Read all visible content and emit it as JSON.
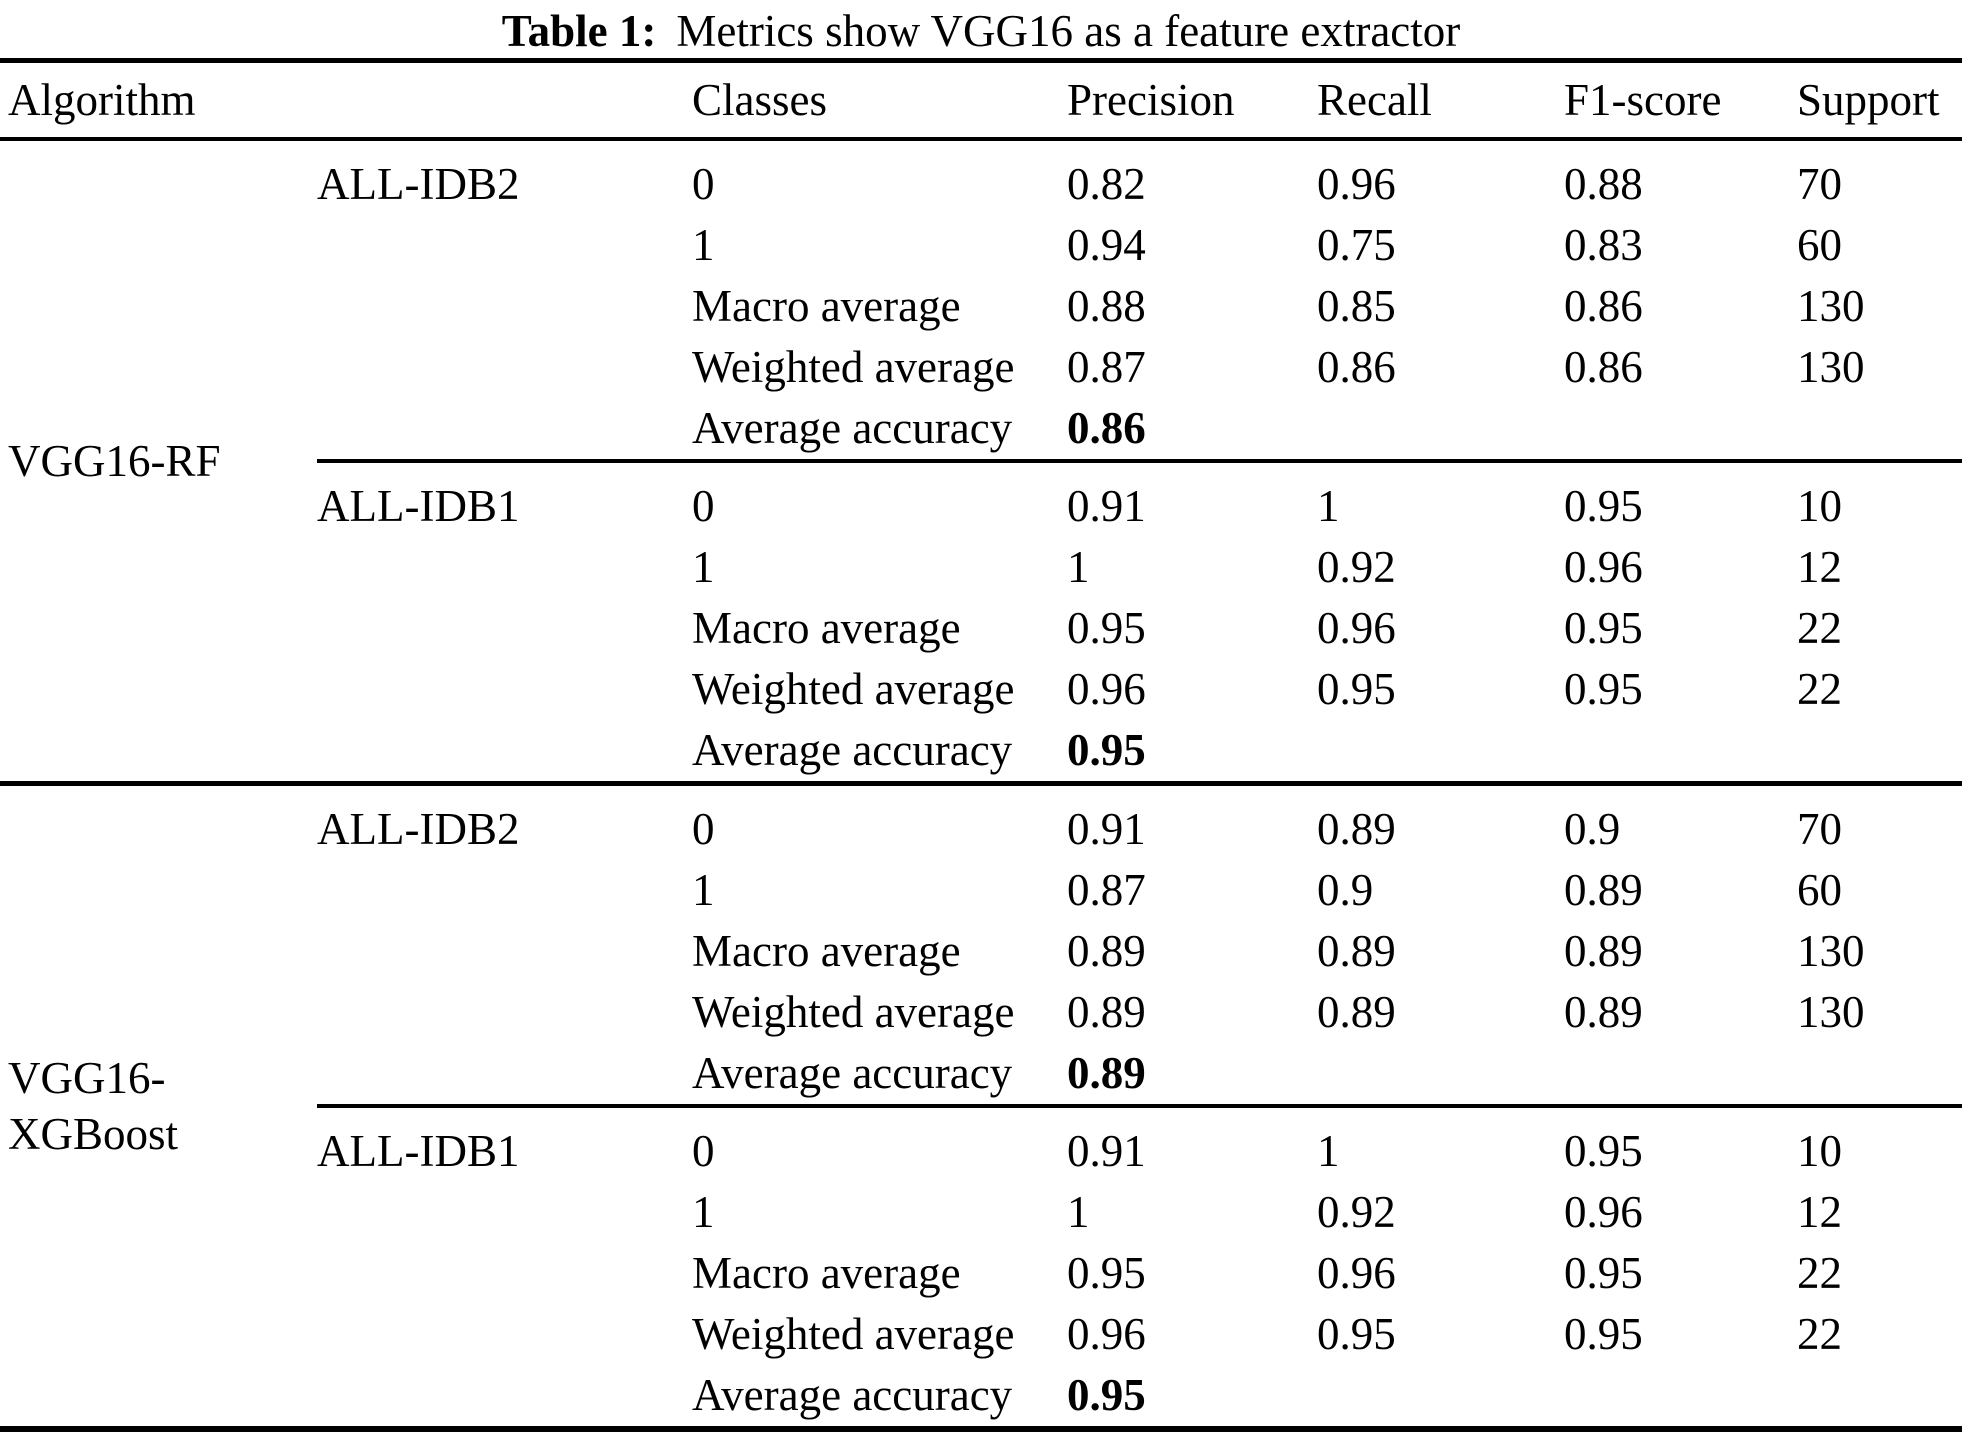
{
  "title": {
    "label": "Table 1:",
    "text": "Metrics show VGG16 as a feature extractor"
  },
  "columns": {
    "algorithm": "Algorithm",
    "dataset": "",
    "classes": "Classes",
    "precision": "Precision",
    "recall": "Recall",
    "f1": "F1-score",
    "support": "Support"
  },
  "groups": [
    {
      "algorithm_lines": [
        "VGG16-RF"
      ],
      "sections": [
        {
          "dataset": "ALL-IDB2",
          "rows": [
            [
              "0",
              "0.82",
              "0.96",
              "0.88",
              "70"
            ],
            [
              "1",
              "0.94",
              "0.75",
              "0.83",
              "60"
            ],
            [
              "Macro average",
              "0.88",
              "0.85",
              "0.86",
              "130"
            ],
            [
              "Weighted average",
              "0.87",
              "0.86",
              "0.86",
              "130"
            ],
            [
              "Average accuracy",
              "0.86",
              "",
              "",
              ""
            ]
          ]
        },
        {
          "dataset": "ALL-IDB1",
          "rows": [
            [
              "0",
              "0.91",
              "1",
              "0.95",
              "10"
            ],
            [
              "1",
              "1",
              "0.92",
              "0.96",
              "12"
            ],
            [
              "Macro average",
              "0.95",
              "0.96",
              "0.95",
              "22"
            ],
            [
              "Weighted average",
              "0.96",
              "0.95",
              "0.95",
              "22"
            ],
            [
              "Average accuracy",
              "0.95",
              "",
              "",
              ""
            ]
          ]
        }
      ]
    },
    {
      "algorithm_lines": [
        "VGG16-",
        "XGBoost"
      ],
      "sections": [
        {
          "dataset": "ALL-IDB2",
          "rows": [
            [
              "0",
              "0.91",
              "0.89",
              "0.9",
              "70"
            ],
            [
              "1",
              "0.87",
              "0.9",
              "0.89",
              "60"
            ],
            [
              "Macro average",
              "0.89",
              "0.89",
              "0.89",
              "130"
            ],
            [
              "Weighted average",
              "0.89",
              "0.89",
              "0.89",
              "130"
            ],
            [
              "Average accuracy",
              "0.89",
              "",
              "",
              ""
            ]
          ]
        },
        {
          "dataset": "ALL-IDB1",
          "rows": [
            [
              "0",
              "0.91",
              "1",
              "0.95",
              "10"
            ],
            [
              "1",
              "1",
              "0.92",
              "0.96",
              "12"
            ],
            [
              "Macro average",
              "0.95",
              "0.96",
              "0.95",
              "22"
            ],
            [
              "Weighted average",
              "0.96",
              "0.95",
              "0.95",
              "22"
            ],
            [
              "Average accuracy",
              "0.95",
              "",
              "",
              ""
            ]
          ]
        }
      ]
    }
  ]
}
